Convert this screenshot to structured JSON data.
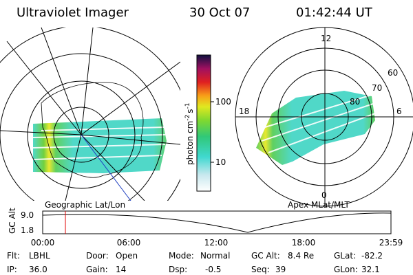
{
  "header": {
    "title": "Ultraviolet Imager",
    "date": "30 Oct 07",
    "time": "01:42:44 UT"
  },
  "left_map": {
    "label": "Geographic Lat/Lon"
  },
  "colorbar": {
    "ticks": [
      "100",
      "10"
    ],
    "units": {
      "base": "photon cm",
      "exp1": "-2",
      "mid": "s",
      "exp2": "-1"
    }
  },
  "right_map": {
    "label": "Apex MLat/MLT",
    "mlt": [
      "12",
      "18",
      "6",
      "0"
    ],
    "lat": [
      "60",
      "70",
      "80"
    ]
  },
  "timeline": {
    "y_label": "GC Alt",
    "y_ticks": [
      "9.0",
      "1.8"
    ],
    "x_ticks": [
      "00:00",
      "06:00",
      "12:00",
      "18:00",
      "23:59"
    ]
  },
  "info": {
    "rows": [
      [
        [
          "Flt:",
          "LBHL"
        ],
        [
          "Door:",
          "Open"
        ],
        [
          "Mode:",
          "Normal"
        ],
        [
          "GC Alt:",
          "8.4 Re"
        ],
        [
          "GLat:",
          "-82.2"
        ]
      ],
      [
        [
          "IP:",
          "36.0"
        ],
        [
          "Gain:",
          "14"
        ],
        [
          "Dsp:",
          "-0.5"
        ],
        [
          "Seq:",
          "39"
        ],
        [
          "GLon:",
          "32.1"
        ]
      ]
    ]
  }
}
